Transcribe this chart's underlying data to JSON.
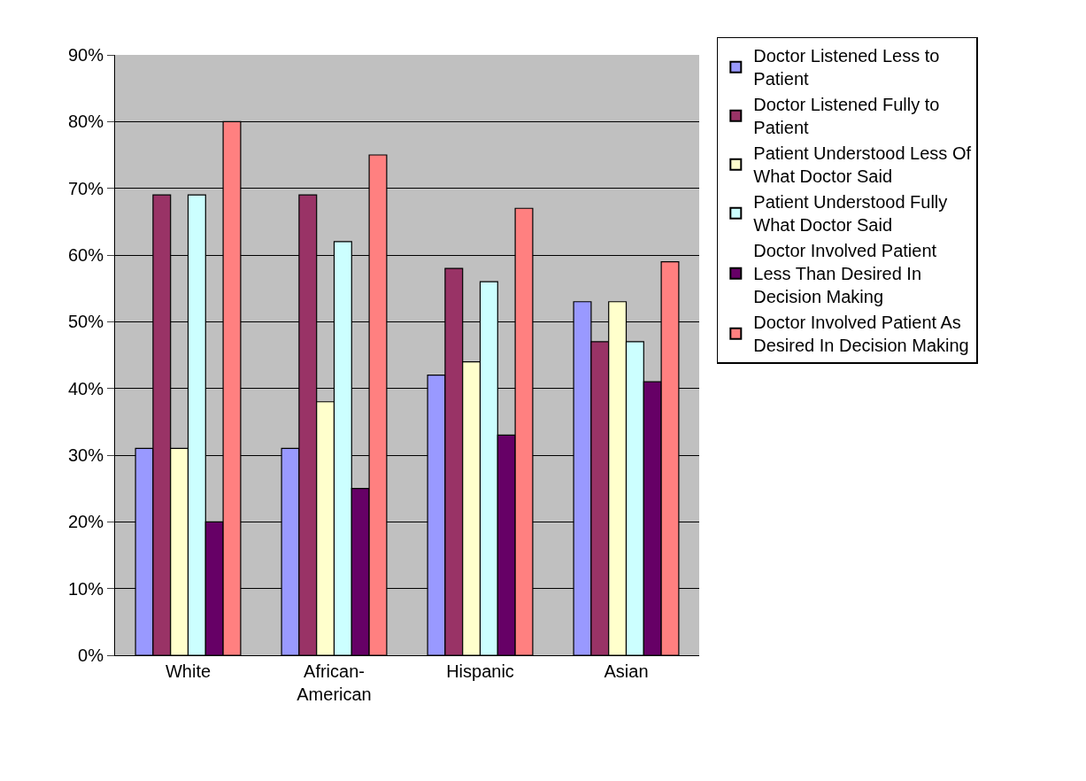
{
  "chart_data": {
    "type": "bar",
    "categories": [
      "White",
      "African-\nAmerican",
      "Hispanic",
      "Asian"
    ],
    "series": [
      {
        "name": "Doctor Listened Less to Patient",
        "color": "#9999ff",
        "values": [
          31,
          31,
          42,
          53
        ]
      },
      {
        "name": "Doctor Listened Fully to Patient",
        "color": "#993366",
        "values": [
          69,
          69,
          58,
          47
        ]
      },
      {
        "name": "Patient Understood Less Of What Doctor Said",
        "color": "#ffffcc",
        "values": [
          31,
          38,
          44,
          53
        ]
      },
      {
        "name": "Patient Understood Fully What Doctor Said",
        "color": "#ccffff",
        "values": [
          69,
          62,
          56,
          47
        ]
      },
      {
        "name": "Doctor Involved Patient Less Than Desired In Decision Making",
        "color": "#660066",
        "values": [
          20,
          25,
          33,
          41
        ]
      },
      {
        "name": "Doctor Involved Patient As Desired In Decision Making",
        "color": "#ff8080",
        "values": [
          80,
          75,
          67,
          59
        ]
      }
    ],
    "ylim": [
      0,
      90
    ],
    "yticks": [
      {
        "value": 0,
        "label": "0%"
      },
      {
        "value": 10,
        "label": "10%"
      },
      {
        "value": 20,
        "label": "20%"
      },
      {
        "value": 30,
        "label": "30%"
      },
      {
        "value": 40,
        "label": "40%"
      },
      {
        "value": 50,
        "label": "50%"
      },
      {
        "value": 60,
        "label": "60%"
      },
      {
        "value": 70,
        "label": "70%"
      },
      {
        "value": 80,
        "label": "80%"
      },
      {
        "value": 90,
        "label": "90%"
      }
    ],
    "grid": "y",
    "legend": "right"
  }
}
